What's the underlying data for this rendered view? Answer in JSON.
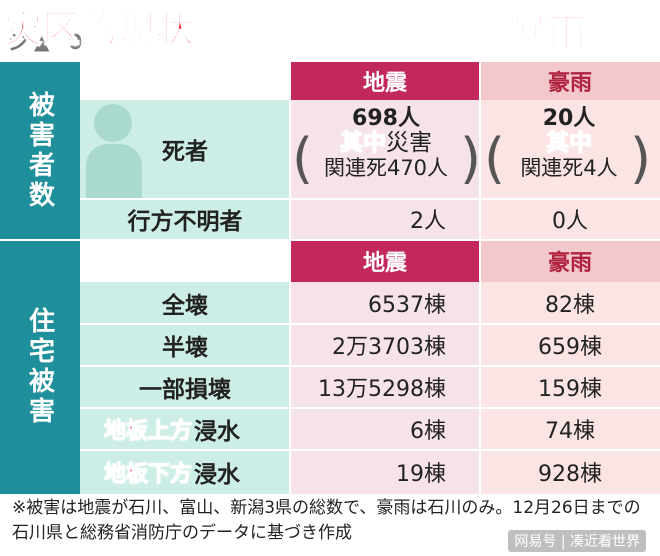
{
  "titles": {
    "disaster": "灾区的现状",
    "rain": "暴雨"
  },
  "side": {
    "casualties": "被害者数",
    "housing": "住宅被害"
  },
  "headers": {
    "quake": "地震",
    "rain": "豪雨"
  },
  "rows": {
    "deaths": {
      "label": "死者",
      "quake_total": "698人",
      "quake_sub1_red": "其中",
      "quake_sub1_rest": "災害",
      "quake_sub2": "関連死470人",
      "rain_total": "20人",
      "rain_sub1_red": "其中",
      "rain_sub2": "関連死4人"
    },
    "missing": {
      "label": "行方不明者",
      "quake": "2人",
      "rain": "0人"
    },
    "full": {
      "label": "全壊",
      "quake": "6537棟",
      "rain": "82棟"
    },
    "half": {
      "label": "半壊",
      "quake": "2万3703棟",
      "rain": "659棟"
    },
    "partial": {
      "label": "一部損壊",
      "quake": "13万5298棟",
      "rain": "159棟"
    },
    "above_floor": {
      "label_red": "地板上方",
      "label_rest": "浸水",
      "quake": "6棟",
      "rain": "74棟"
    },
    "below_floor": {
      "label_red": "地板下方",
      "label_rest": "浸水",
      "quake": "19棟",
      "rain": "928棟"
    }
  },
  "note": "※被害は地震が石川、富山、新潟3県の総数で、豪雨は石川のみ。12月26日までの石川県と総務省消防庁のデータに基づき作成",
  "watermark": "网易号 | 凑近看世界",
  "colors": {
    "teal": "#1f8f9c",
    "mint": "#cdeee6",
    "crimson": "#c2285c",
    "pink": "#f2c8cc",
    "red_text": "#e8101f"
  }
}
